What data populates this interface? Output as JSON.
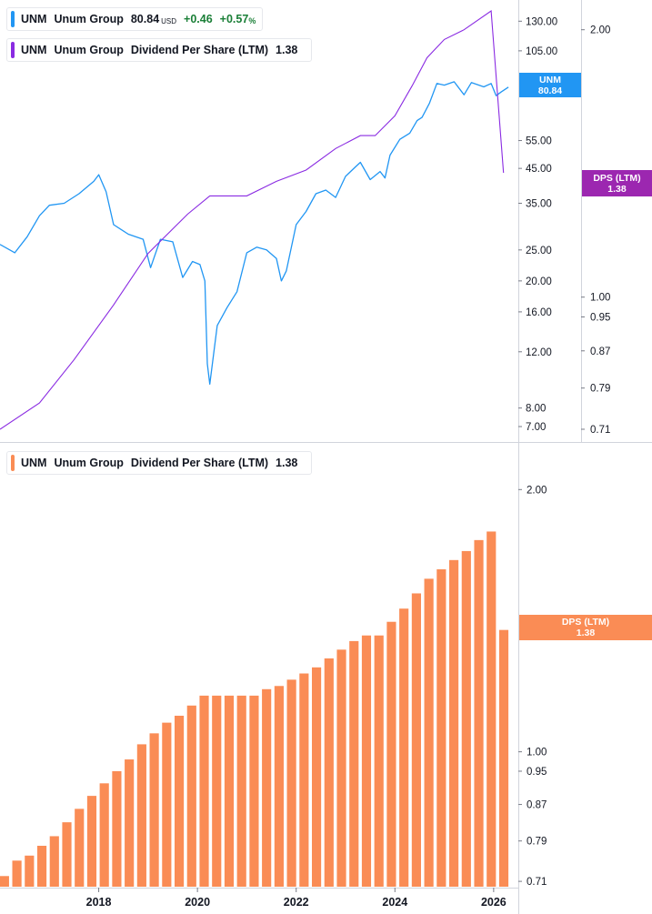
{
  "colors": {
    "price": "#2196f3",
    "dps_line": "#8a2be2",
    "bars": "#fa8c55",
    "dps_badge": "#9c27b0"
  },
  "legend_top": {
    "ticker": "UNM",
    "name": "Unum Group",
    "price": "80.84",
    "unit": "USD",
    "change": "+0.46",
    "change_pct": "+0.57",
    "pct_sign": "%"
  },
  "legend_dps": {
    "ticker": "UNM",
    "name": "Unum Group",
    "metric": "Dividend Per Share (LTM)",
    "value": "1.38"
  },
  "legend_bottom": {
    "ticker": "UNM",
    "name": "Unum Group",
    "metric": "Dividend Per Share (LTM)",
    "value": "1.38"
  },
  "badges": {
    "price": {
      "line1": "UNM",
      "line2": "80.84"
    },
    "dps_top": {
      "line1": "DPS (LTM)",
      "line2": "1.38"
    },
    "dps_bottom": {
      "line1": "DPS (LTM)",
      "line2": "1.38"
    }
  },
  "chart_data": [
    {
      "type": "line",
      "title": "",
      "y_scale": "log",
      "x_range": [
        2016.0,
        2026.5
      ],
      "y_axis_price": {
        "ticks": [
          "130.00",
          "105.00",
          "55.00",
          "45.00",
          "35.00",
          "25.00",
          "20.00",
          "16.00",
          "12.00",
          "8.00",
          "7.00"
        ],
        "range": [
          6.6,
          140
        ]
      },
      "y_axis_dps": {
        "ticks": [
          "2.00",
          "1.00",
          "0.95",
          "0.87",
          "0.79",
          "0.71"
        ],
        "range": [
          0.7,
          2.1
        ]
      },
      "series": [
        {
          "name": "UNM",
          "axis": "price",
          "x": [
            2016.0,
            2016.3,
            2016.55,
            2016.8,
            2017.0,
            2017.3,
            2017.6,
            2017.9,
            2018.0,
            2018.15,
            2018.3,
            2018.6,
            2018.9,
            2019.05,
            2019.25,
            2019.5,
            2019.7,
            2019.9,
            2020.05,
            2020.15,
            2020.2,
            2020.25,
            2020.4,
            2020.6,
            2020.8,
            2021.0,
            2021.2,
            2021.4,
            2021.6,
            2021.7,
            2021.8,
            2022.0,
            2022.2,
            2022.4,
            2022.6,
            2022.8,
            2023.0,
            2023.2,
            2023.3,
            2023.5,
            2023.7,
            2023.8,
            2023.9,
            2024.1,
            2024.3,
            2024.45,
            2024.55,
            2024.7,
            2024.85,
            2025.0,
            2025.2,
            2025.4,
            2025.55,
            2025.8,
            2025.95,
            2026.05,
            2026.15,
            2026.3
          ],
          "y": [
            26.0,
            24.5,
            27.5,
            32.0,
            34.5,
            35.0,
            37.5,
            41.0,
            43.0,
            38.0,
            30.0,
            28.0,
            27.0,
            22.0,
            27.0,
            26.5,
            20.5,
            23.0,
            22.5,
            20.0,
            11.0,
            9.5,
            14.5,
            16.5,
            18.5,
            24.5,
            25.5,
            25.0,
            23.5,
            20.0,
            21.5,
            30.0,
            33.0,
            37.5,
            38.5,
            36.5,
            42.5,
            45.5,
            47.0,
            41.5,
            44.0,
            42.0,
            49.5,
            55.5,
            58.0,
            63.5,
            65.0,
            72.0,
            83.0,
            82.0,
            84.0,
            76.5,
            83.5,
            81.0,
            83.0,
            76.0,
            78.0,
            80.84
          ]
        },
        {
          "name": "Dividend Per Share (LTM)",
          "axis": "dps",
          "x": [
            2016.0,
            2016.8,
            2017.5,
            2018.3,
            2019.0,
            2019.8,
            2020.25,
            2021.0,
            2021.6,
            2022.2,
            2022.8,
            2023.3,
            2023.6,
            2024.0,
            2024.35,
            2024.65,
            2025.0,
            2025.4,
            2025.95,
            2026.2
          ],
          "y": [
            0.71,
            0.76,
            0.85,
            0.98,
            1.12,
            1.24,
            1.3,
            1.3,
            1.35,
            1.39,
            1.47,
            1.52,
            1.52,
            1.6,
            1.73,
            1.86,
            1.95,
            2.0,
            2.1,
            1.38
          ]
        }
      ]
    },
    {
      "type": "bar",
      "title": "",
      "y_scale": "log",
      "y_axis": {
        "ticks": [
          "2.00",
          "1.00",
          "0.95",
          "0.87",
          "0.79",
          "0.71"
        ],
        "range": [
          0.7,
          2.08
        ]
      },
      "x_ticks": [
        "2018",
        "2020",
        "2022",
        "2024",
        "2026"
      ],
      "series": [
        {
          "name": "Dividend Per Share (LTM)",
          "categories": [
            "2016Q1",
            "2016Q2",
            "2016Q3",
            "2016Q4",
            "2017Q1",
            "2017Q2",
            "2017Q3",
            "2017Q4",
            "2018Q1",
            "2018Q2",
            "2018Q3",
            "2018Q4",
            "2019Q1",
            "2019Q2",
            "2019Q3",
            "2019Q4",
            "2020Q1",
            "2020Q2",
            "2020Q3",
            "2020Q4",
            "2021Q1",
            "2021Q2",
            "2021Q3",
            "2021Q4",
            "2022Q1",
            "2022Q2",
            "2022Q3",
            "2022Q4",
            "2023Q1",
            "2023Q2",
            "2023Q3",
            "2023Q4",
            "2024Q1",
            "2024Q2",
            "2024Q3",
            "2024Q4",
            "2025Q1",
            "2025Q2",
            "2025Q3",
            "2025Q4",
            "2026Q1"
          ],
          "values": [
            0.72,
            0.75,
            0.76,
            0.78,
            0.8,
            0.83,
            0.86,
            0.89,
            0.92,
            0.95,
            0.98,
            1.02,
            1.05,
            1.08,
            1.1,
            1.13,
            1.16,
            1.16,
            1.16,
            1.16,
            1.16,
            1.18,
            1.19,
            1.21,
            1.23,
            1.25,
            1.28,
            1.31,
            1.34,
            1.36,
            1.36,
            1.41,
            1.46,
            1.52,
            1.58,
            1.62,
            1.66,
            1.7,
            1.75,
            1.79,
            1.38
          ]
        }
      ]
    }
  ]
}
